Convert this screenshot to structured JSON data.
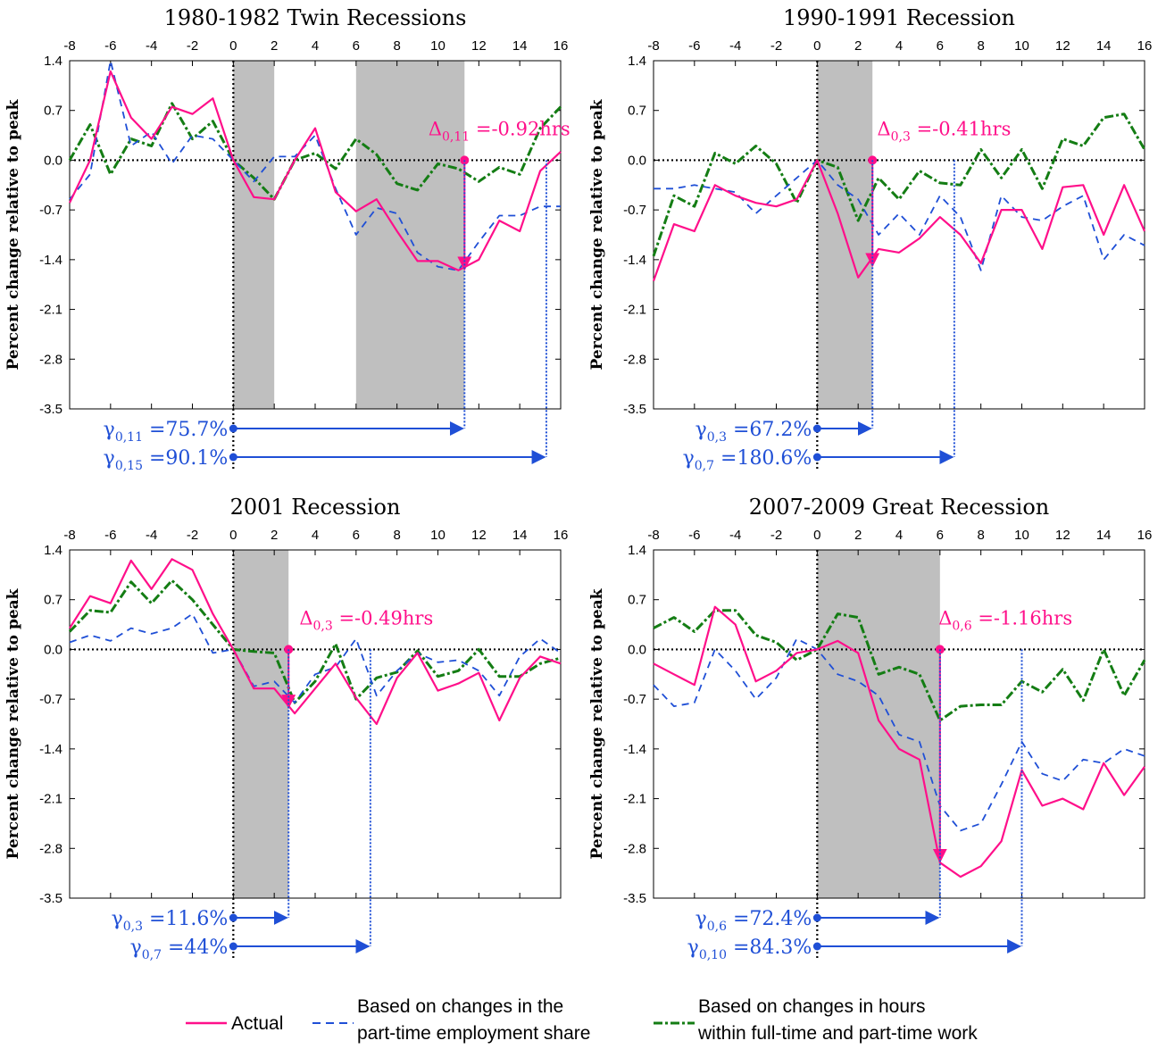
{
  "colors": {
    "actual": "#ff0f8a",
    "part_time_share": "#1f4fd6",
    "hours_within": "#147d14",
    "recession_shade": "#bfbfbf",
    "gamma": "#1f4fd6",
    "delta": "#ff0f8a"
  },
  "shared": {
    "ylabel": "Percent change relative to peak",
    "xlim": [
      -8,
      16
    ],
    "ylim": [
      -3.5,
      1.4
    ],
    "xticks": [
      "-8",
      "-6",
      "-4",
      "-2",
      "0",
      "2",
      "4",
      "6",
      "8",
      "10",
      "12",
      "14",
      "16"
    ],
    "yticks": [
      "1.4",
      "0.7",
      "0.0",
      "-0.7",
      "-1.4",
      "-2.1",
      "-2.8",
      "-3.5"
    ]
  },
  "legend": {
    "actual": "Actual",
    "part_time_line1": "Based on changes in the",
    "part_time_line2": "part-time employment share",
    "hours_line1": "Based on changes in hours",
    "hours_line2": "within full-time and part-time work"
  },
  "chart_data": [
    {
      "type": "line",
      "title": "1980-1982 Twin Recessions",
      "ylabel": "Percent change relative to peak",
      "xlim": [
        -8,
        16
      ],
      "ylim": [
        -3.5,
        1.4
      ],
      "grid": false,
      "recession_shading": [
        [
          0,
          2
        ],
        [
          6,
          11.3
        ]
      ],
      "x": [
        -8,
        -7,
        -6,
        -5,
        -4,
        -3,
        -2,
        -1,
        0,
        1,
        2,
        3,
        4,
        5,
        6,
        7,
        8,
        9,
        10,
        11,
        12,
        13,
        14,
        15,
        16
      ],
      "series": [
        {
          "name": "Actual",
          "values": [
            -0.6,
            0.0,
            1.25,
            0.6,
            0.3,
            0.75,
            0.65,
            0.87,
            0.0,
            -0.52,
            -0.55,
            0.0,
            0.45,
            -0.45,
            -0.72,
            -0.55,
            -1.0,
            -1.42,
            -1.42,
            -1.55,
            -1.4,
            -0.85,
            -1.0,
            -0.15,
            0.12
          ]
        },
        {
          "name": "Based on changes in the part-time employment share",
          "values": [
            -0.55,
            -0.2,
            1.4,
            0.2,
            0.4,
            -0.05,
            0.35,
            0.3,
            0.0,
            -0.3,
            0.05,
            0.05,
            0.35,
            -0.4,
            -1.05,
            -0.67,
            -0.75,
            -1.3,
            -1.5,
            -1.55,
            -1.15,
            -0.78,
            -0.78,
            -0.65,
            -0.65
          ]
        },
        {
          "name": "Based on changes in hours within full-time and part-time work",
          "values": [
            0.0,
            0.5,
            -0.2,
            0.3,
            0.2,
            0.8,
            0.3,
            0.55,
            0.0,
            -0.25,
            -0.55,
            0.0,
            0.1,
            -0.12,
            0.3,
            0.08,
            -0.33,
            -0.42,
            -0.05,
            -0.12,
            -0.3,
            -0.1,
            -0.2,
            0.45,
            0.75
          ]
        }
      ],
      "annotations": [
        {
          "kind": "delta",
          "base": "Δ",
          "sub": "0,11",
          "text": " =-0.92hrs",
          "x": 11.3,
          "from": 0.0,
          "to": -1.55,
          "label_x": 13
        },
        {
          "kind": "gamma",
          "base": "γ",
          "sub": "0,11",
          "text": " =75.7%",
          "x_end": 11.3
        },
        {
          "kind": "gamma",
          "base": "γ",
          "sub": "0,15",
          "text": " =90.1%",
          "x_end": 15.3
        }
      ]
    },
    {
      "type": "line",
      "title": "1990-1991 Recession",
      "ylabel": "Percent change relative to peak",
      "xlim": [
        -8,
        16
      ],
      "ylim": [
        -3.5,
        1.4
      ],
      "grid": false,
      "recession_shading": [
        [
          0,
          2.7
        ]
      ],
      "x": [
        -8,
        -7,
        -6,
        -5,
        -4,
        -3,
        -2,
        -1,
        0,
        1,
        2,
        3,
        4,
        5,
        6,
        7,
        8,
        9,
        10,
        11,
        12,
        13,
        14,
        15,
        16
      ],
      "series": [
        {
          "name": "Actual",
          "values": [
            -1.7,
            -0.9,
            -1.0,
            -0.35,
            -0.5,
            -0.6,
            -0.65,
            -0.55,
            0.0,
            -0.75,
            -1.65,
            -1.25,
            -1.3,
            -1.1,
            -0.8,
            -1.05,
            -1.45,
            -0.7,
            -0.7,
            -1.25,
            -0.38,
            -0.35,
            -1.05,
            -0.35,
            -1.0
          ]
        },
        {
          "name": "Based on changes in the part-time employment share",
          "values": [
            -0.4,
            -0.4,
            -0.35,
            -0.4,
            -0.45,
            -0.75,
            -0.5,
            -0.25,
            0.0,
            -0.35,
            -0.55,
            -1.05,
            -0.75,
            -1.05,
            -0.5,
            -0.8,
            -1.55,
            -0.5,
            -0.8,
            -0.85,
            -0.65,
            -0.5,
            -1.4,
            -1.05,
            -1.2
          ]
        },
        {
          "name": "Based on changes in hours within full-time and part-time work",
          "values": [
            -1.35,
            -0.5,
            -0.65,
            0.1,
            -0.05,
            0.2,
            -0.05,
            -0.6,
            0.0,
            -0.1,
            -0.85,
            -0.25,
            -0.55,
            -0.15,
            -0.32,
            -0.35,
            0.15,
            -0.25,
            0.15,
            -0.4,
            0.3,
            0.2,
            0.6,
            0.65,
            0.15
          ]
        }
      ],
      "annotations": [
        {
          "kind": "delta",
          "base": "Δ",
          "sub": "0,3",
          "text": " =-0.41hrs",
          "x": 2.7,
          "from": 0.0,
          "to": -1.5,
          "label_x": 6.2
        },
        {
          "kind": "gamma",
          "base": "γ",
          "sub": "0,3",
          "text": " =67.2%",
          "x_end": 2.7
        },
        {
          "kind": "gamma",
          "base": "γ",
          "sub": "0,7",
          "text": " =180.6%",
          "x_end": 6.7
        }
      ]
    },
    {
      "type": "line",
      "title": "2001 Recession",
      "ylabel": "Percent change relative to peak",
      "xlim": [
        -8,
        16
      ],
      "ylim": [
        -3.5,
        1.4
      ],
      "grid": false,
      "recession_shading": [
        [
          0,
          2.7
        ]
      ],
      "x": [
        -8,
        -7,
        -6,
        -5,
        -4,
        -3,
        -2,
        -1,
        0,
        1,
        2,
        3,
        4,
        5,
        6,
        7,
        8,
        9,
        10,
        11,
        12,
        13,
        14,
        15,
        16
      ],
      "series": [
        {
          "name": "Actual",
          "values": [
            0.3,
            0.75,
            0.65,
            1.25,
            0.85,
            1.27,
            1.12,
            0.5,
            0.0,
            -0.55,
            -0.55,
            -0.9,
            -0.55,
            -0.2,
            -0.68,
            -1.05,
            -0.4,
            -0.05,
            -0.58,
            -0.48,
            -0.33,
            -1.0,
            -0.4,
            -0.1,
            -0.2
          ]
        },
        {
          "name": "Based on changes in the part-time employment share",
          "values": [
            0.1,
            0.2,
            0.12,
            0.3,
            0.22,
            0.3,
            0.5,
            -0.05,
            0.0,
            -0.52,
            -0.45,
            -0.75,
            -0.35,
            -0.25,
            0.15,
            -0.65,
            -0.3,
            -0.05,
            -0.18,
            -0.15,
            -0.3,
            -0.65,
            -0.1,
            0.15,
            -0.05
          ]
        },
        {
          "name": "Based on changes in hours within full-time and part-time work",
          "values": [
            0.25,
            0.55,
            0.52,
            0.95,
            0.65,
            0.97,
            0.7,
            0.35,
            0.0,
            -0.03,
            -0.05,
            -0.75,
            -0.45,
            0.08,
            -0.7,
            -0.4,
            -0.32,
            -0.02,
            -0.38,
            -0.3,
            0.0,
            -0.38,
            -0.38,
            -0.2,
            -0.12
          ]
        }
      ],
      "annotations": [
        {
          "kind": "delta",
          "base": "Δ",
          "sub": "0,3",
          "text": " =-0.49hrs",
          "x": 2.7,
          "from": 0.0,
          "to": -0.83,
          "label_x": 6.5
        },
        {
          "kind": "gamma",
          "base": "γ",
          "sub": "0,3",
          "text": " =11.6%",
          "x_end": 2.7
        },
        {
          "kind": "gamma",
          "base": "γ",
          "sub": "0,7",
          "text": " =44%",
          "x_end": 6.7
        }
      ]
    },
    {
      "type": "line",
      "title": "2007-2009 Great Recession",
      "ylabel": "Percent change relative to peak",
      "xlim": [
        -8,
        16
      ],
      "ylim": [
        -3.5,
        1.4
      ],
      "grid": false,
      "recession_shading": [
        [
          0,
          6
        ]
      ],
      "x": [
        -8,
        -7,
        -6,
        -5,
        -4,
        -3,
        -2,
        -1,
        0,
        1,
        2,
        3,
        4,
        5,
        6,
        7,
        8,
        9,
        10,
        11,
        12,
        13,
        14,
        15,
        16
      ],
      "series": [
        {
          "name": "Actual",
          "values": [
            -0.2,
            -0.35,
            -0.5,
            0.6,
            0.35,
            -0.45,
            -0.3,
            -0.05,
            0.0,
            0.12,
            -0.05,
            -1.0,
            -1.4,
            -1.55,
            -3.0,
            -3.2,
            -3.05,
            -2.7,
            -1.7,
            -2.2,
            -2.1,
            -2.25,
            -1.6,
            -2.05,
            -1.65
          ]
        },
        {
          "name": "Based on changes in the part-time employment share",
          "values": [
            -0.5,
            -0.8,
            -0.75,
            0.0,
            -0.3,
            -0.7,
            -0.4,
            0.15,
            0.0,
            -0.35,
            -0.45,
            -0.65,
            -1.2,
            -1.3,
            -2.2,
            -2.55,
            -2.45,
            -1.9,
            -1.3,
            -1.75,
            -1.85,
            -1.55,
            -1.6,
            -1.4,
            -1.5
          ]
        },
        {
          "name": "Based on changes in hours within full-time and part-time work",
          "values": [
            0.3,
            0.45,
            0.25,
            0.55,
            0.55,
            0.2,
            0.1,
            -0.15,
            0.0,
            0.5,
            0.45,
            -0.35,
            -0.25,
            -0.35,
            -1.0,
            -0.8,
            -0.78,
            -0.78,
            -0.45,
            -0.6,
            -0.28,
            -0.72,
            0.0,
            -0.65,
            -0.15
          ]
        }
      ],
      "annotations": [
        {
          "kind": "delta",
          "base": "Δ",
          "sub": "0,6",
          "text": " =-1.16hrs",
          "x": 6.0,
          "from": 0.0,
          "to": -3.0,
          "label_x": 9.2
        },
        {
          "kind": "gamma",
          "base": "γ",
          "sub": "0,6",
          "text": " =72.4%",
          "x_end": 6.0
        },
        {
          "kind": "gamma",
          "base": "γ",
          "sub": "0,10",
          "text": " =84.3%",
          "x_end": 10.0
        }
      ]
    }
  ]
}
